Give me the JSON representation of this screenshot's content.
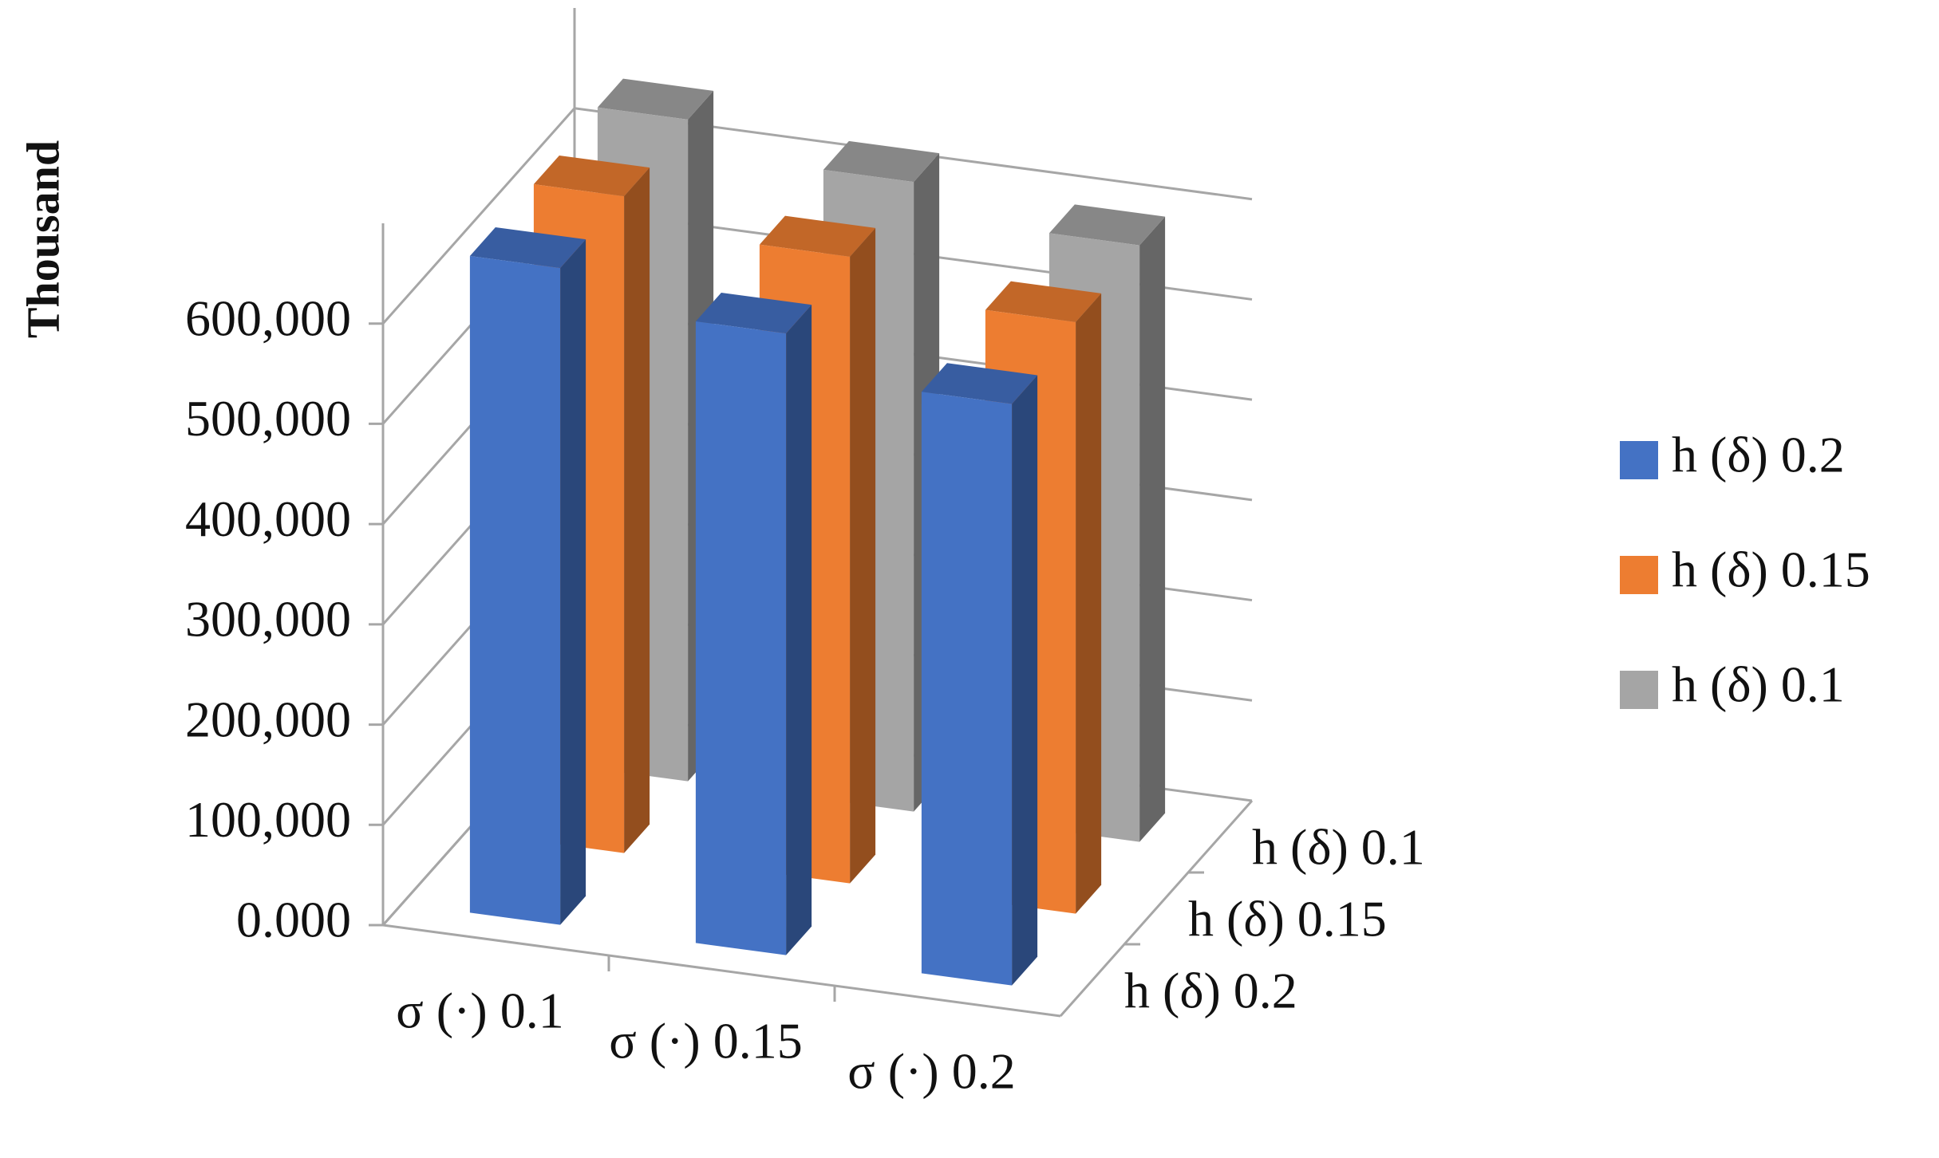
{
  "chart_data": {
    "type": "bar3d",
    "y_label": "Thousand",
    "categories": [
      "σ (·) 0.1",
      "σ (·) 0.15",
      "σ (·) 0.2"
    ],
    "series": [
      {
        "name": "h (δ) 0.2",
        "color": "#4472c4",
        "values": [
          655000,
          620000,
          580000
        ]
      },
      {
        "name": "h (δ) 0.15",
        "color": "#ed7d31",
        "values": [
          655000,
          625000,
          590000
        ]
      },
      {
        "name": "h (δ) 0.1",
        "color": "#a5a5a5",
        "values": [
          660000,
          628000,
          595000
        ]
      }
    ],
    "ylim": [
      0,
      700000
    ],
    "yticks": [
      {
        "value": 0,
        "label": "0.000"
      },
      {
        "value": 100000,
        "label": "100,000"
      },
      {
        "value": 200000,
        "label": "200,000"
      },
      {
        "value": 300000,
        "label": "300,000"
      },
      {
        "value": 400000,
        "label": "400,000"
      },
      {
        "value": 500000,
        "label": "500,000"
      },
      {
        "value": 600000,
        "label": "600,000"
      }
    ],
    "grid": true,
    "legend": "right"
  }
}
